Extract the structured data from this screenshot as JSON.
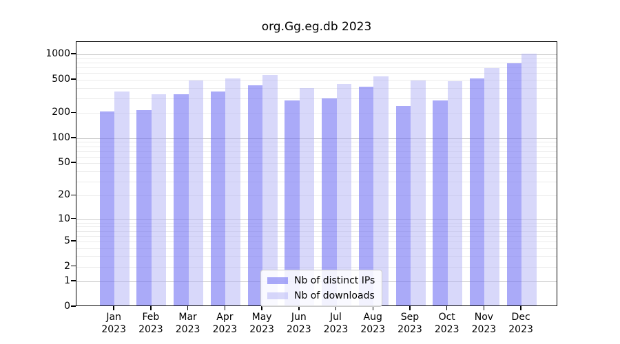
{
  "title": "org.Gg.eg.db 2023",
  "colors": {
    "distinct_ips_bar": "rgba(113,113,243,0.6)",
    "downloads_bar": "rgba(177,177,245,0.5)",
    "distinct_ips_solid": "#a8a8f8",
    "downloads_solid": "#d8d8fa",
    "grid_major": "#c9c9c9",
    "grid_minor": "#ebebeb",
    "axis": "#000000"
  },
  "chart_data": {
    "type": "bar",
    "title": "org.Gg.eg.db 2023",
    "yscale": "log1p",
    "grid": true,
    "legend_position": "lower center",
    "categories": [
      "Jan",
      "Feb",
      "Mar",
      "Apr",
      "May",
      "Jun",
      "Jul",
      "Aug",
      "Sep",
      "Oct",
      "Nov",
      "Dec"
    ],
    "year_label": "2023",
    "series": [
      {
        "name": "Nb of distinct IPs",
        "values": [
          200,
          210,
          320,
          350,
          415,
          270,
          290,
          395,
          235,
          270,
          500,
          750
        ]
      },
      {
        "name": "Nb of downloads",
        "values": [
          350,
          320,
          470,
          500,
          550,
          385,
          430,
          530,
          475,
          465,
          665,
          990
        ]
      }
    ],
    "ytick_values": [
      0,
      1,
      2,
      5,
      10,
      20,
      50,
      100,
      200,
      500,
      1000
    ],
    "ytick_labels": [
      "0",
      "1",
      "2",
      "5",
      "10",
      "20",
      "50",
      "100",
      "200",
      "500",
      "1000"
    ],
    "grid_major_values": [
      1,
      10,
      100,
      1000
    ],
    "grid_minor_values": [
      2,
      3,
      4,
      5,
      6,
      7,
      8,
      9,
      20,
      30,
      40,
      50,
      60,
      70,
      80,
      90,
      200,
      300,
      400,
      500,
      600,
      700,
      800,
      900
    ],
    "ylim": [
      0,
      1390
    ],
    "xlabel": "",
    "ylabel": ""
  }
}
